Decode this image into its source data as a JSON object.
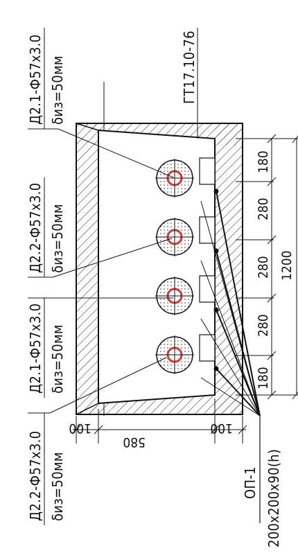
{
  "sheet": {
    "title": "ГТ17.10-76"
  },
  "pipes": [
    {
      "designation": "Д2.1-Ф57х3.0",
      "insulation": "δиз=50мм"
    },
    {
      "designation": "Д2.2-Ф57х3.0",
      "insulation": "δиз=50мм"
    },
    {
      "designation": "Д2.1-Ф57х3.0",
      "insulation": "δиз=50мм"
    },
    {
      "designation": "Д2.2-Ф57х3.0",
      "insulation": "δиз=50мм"
    }
  ],
  "support": {
    "label": "ОП-1",
    "size": "200x200x90(h)"
  },
  "dimensions": {
    "spacings": [
      "180",
      "280",
      "280",
      "280",
      "180"
    ],
    "total_length": "1200",
    "width": "580",
    "wall_left": "100",
    "wall_right": "100"
  },
  "colors": {
    "line": "#111111",
    "pipe_core": "#d23a3a"
  }
}
